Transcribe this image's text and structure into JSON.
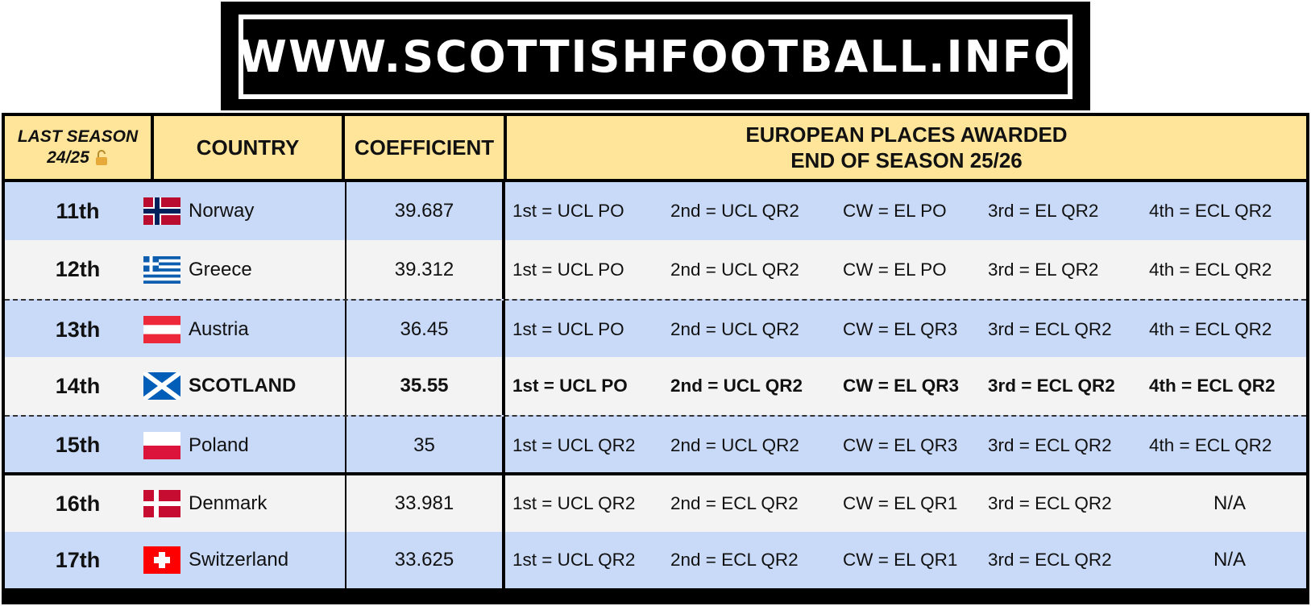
{
  "banner": {
    "text": "WWW.SCOTTISHFOOTBALL.INFO"
  },
  "header": {
    "last_season_line1": "LAST SEASON",
    "last_season_line2": "24/25",
    "country": "COUNTRY",
    "coefficient": "COEFFICIENT",
    "places_line1": "EUROPEAN PLACES AWARDED",
    "places_line2": "END OF SEASON 25/26"
  },
  "rows": [
    {
      "rank": "11th",
      "country": "Norway",
      "coefficient": "39.687",
      "places": [
        "1st = UCL PO",
        "2nd = UCL QR2",
        "CW = EL PO",
        "3rd = EL QR2",
        "4th = ECL QR2"
      ]
    },
    {
      "rank": "12th",
      "country": "Greece",
      "coefficient": "39.312",
      "places": [
        "1st = UCL PO",
        "2nd = UCL QR2",
        "CW = EL PO",
        "3rd = EL QR2",
        "4th = ECL QR2"
      ]
    },
    {
      "rank": "13th",
      "country": "Austria",
      "coefficient": "36.45",
      "places": [
        "1st = UCL PO",
        "2nd = UCL QR2",
        "CW = EL QR3",
        "3rd = ECL QR2",
        "4th = ECL QR2"
      ]
    },
    {
      "rank": "14th",
      "country": "SCOTLAND",
      "coefficient": "35.55",
      "places": [
        "1st = UCL PO",
        "2nd = UCL QR2",
        "CW = EL QR3",
        "3rd = ECL QR2",
        "4th = ECL QR2"
      ]
    },
    {
      "rank": "15th",
      "country": "Poland",
      "coefficient": "35",
      "places": [
        "1st = UCL QR2",
        "2nd = UCL QR2",
        "CW = EL QR3",
        "3rd = ECL QR2",
        "4th = ECL QR2"
      ]
    },
    {
      "rank": "16th",
      "country": "Denmark",
      "coefficient": "33.981",
      "places": [
        "1st = UCL QR2",
        "2nd = ECL QR2",
        "CW = EL QR1",
        "3rd = ECL QR2",
        "N/A"
      ]
    },
    {
      "rank": "17th",
      "country": "Switzerland",
      "coefficient": "33.625",
      "places": [
        "1st = UCL QR2",
        "2nd = ECL QR2",
        "CW = EL QR1",
        "3rd = ECL QR2",
        "N/A"
      ]
    }
  ]
}
